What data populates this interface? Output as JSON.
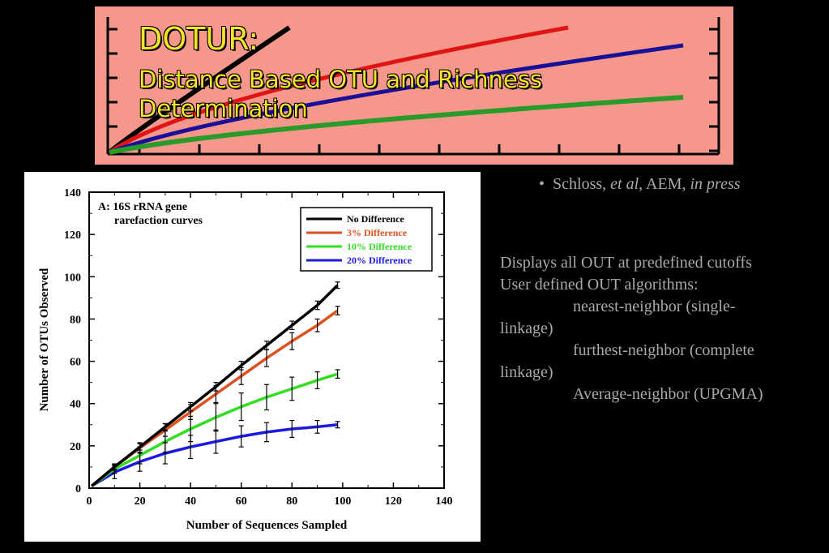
{
  "banner": {
    "title": "DOTUR:",
    "subtitle": "Distance Based OTU and Richness Determination",
    "curve_colors": [
      "#000000",
      "#e01414",
      "#1a0f99",
      "#2a9a2a"
    ]
  },
  "citation": {
    "bullet": "•",
    "author": "Schloss, ",
    "etal": "et al",
    "journal": ", AEM, ",
    "status": "in press"
  },
  "description": {
    "line1": "Displays all OUT at predefined cutoffs",
    "line2": "User defined OUT algorithms:",
    "item1a": "nearest-neighbor (single-",
    "item1b": "linkage)",
    "item2a": "furthest-neighbor (complete",
    "item2b": "linkage)",
    "item3": "Average-neighbor (UPGMA)"
  },
  "chart_data": {
    "type": "line",
    "annotation": [
      "A: 16S rRNA gene",
      "rarefaction curves"
    ],
    "xlabel": "Number of Sequences Sampled",
    "ylabel": "Number of OTUs Observed",
    "xlim": [
      0,
      140
    ],
    "ylim": [
      0,
      140
    ],
    "xticks": [
      "0",
      "20",
      "40",
      "60",
      "80",
      "100",
      "120",
      "140"
    ],
    "yticks": [
      "0",
      "20",
      "40",
      "60",
      "80",
      "100",
      "120",
      "140"
    ],
    "legend_position": "top-right",
    "series": [
      {
        "name": "No Difference",
        "color": "#000000",
        "x": [
          1,
          10,
          20,
          30,
          40,
          50,
          60,
          70,
          80,
          90,
          98
        ],
        "y": [
          1,
          10,
          19.5,
          29,
          38.5,
          48,
          58,
          67.5,
          77,
          86.5,
          96
        ],
        "err": [
          0.5,
          1,
          1.5,
          1.5,
          2,
          2,
          2,
          2,
          2,
          2,
          1.5
        ]
      },
      {
        "name": "3% Difference",
        "color": "#e0501e",
        "x": [
          1,
          10,
          20,
          30,
          40,
          50,
          60,
          70,
          80,
          90,
          98
        ],
        "y": [
          1,
          10,
          19,
          27.5,
          36,
          44.5,
          53,
          61.5,
          69.5,
          77,
          84
        ],
        "err": [
          0.5,
          1.5,
          2.5,
          3,
          3.5,
          4,
          4,
          4,
          4,
          3,
          2
        ]
      },
      {
        "name": "10% Difference",
        "color": "#33dd22",
        "x": [
          1,
          10,
          20,
          30,
          40,
          50,
          60,
          70,
          80,
          90,
          98
        ],
        "y": [
          1,
          9,
          15.5,
          22,
          28,
          33.5,
          38.5,
          43,
          47,
          51,
          54
        ],
        "err": [
          0.5,
          2,
          4,
          5,
          6,
          6.5,
          6.5,
          6,
          5.5,
          4,
          2
        ]
      },
      {
        "name": "20% Difference",
        "color": "#1a1ae0",
        "x": [
          1,
          10,
          20,
          30,
          40,
          50,
          60,
          70,
          80,
          90,
          98
        ],
        "y": [
          1,
          7.5,
          12.5,
          16.5,
          19.5,
          22,
          24.5,
          26.5,
          28,
          29,
          30
        ],
        "err": [
          0.5,
          3,
          4.5,
          5,
          5.5,
          5.5,
          5,
          4.5,
          4,
          3,
          1.5
        ]
      }
    ]
  }
}
